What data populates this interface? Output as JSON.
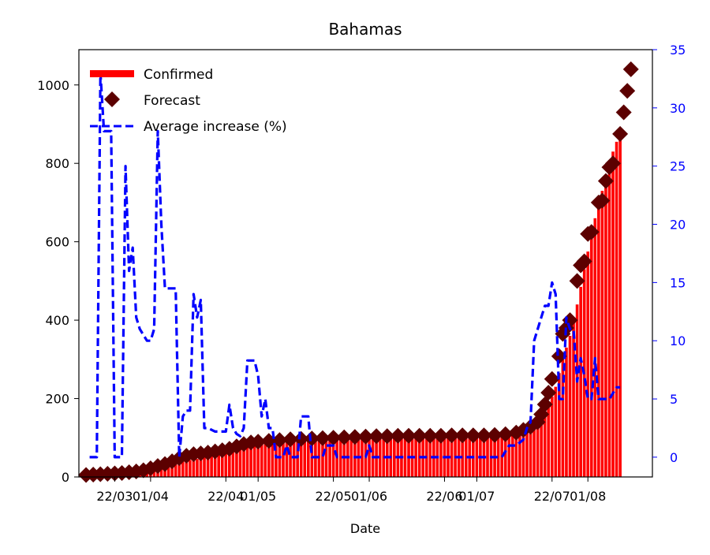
{
  "chart_data": {
    "type": "bar",
    "title": "Bahamas",
    "xlabel": "Date",
    "ylabel": "",
    "ylim": [
      0,
      1090
    ],
    "y2lim": [
      -1.7,
      35
    ],
    "xlim": [
      "2020-03-12",
      "2020-08-19"
    ],
    "grid": false,
    "legend_position": "top-left",
    "x_ticks": [
      {
        "date": "2020-03-22",
        "label": "22/03"
      },
      {
        "date": "2020-04-01",
        "label": "01/04"
      },
      {
        "date": "2020-04-22",
        "label": "22/04"
      },
      {
        "date": "2020-05-01",
        "label": "01/05"
      },
      {
        "date": "2020-05-22",
        "label": "22/05"
      },
      {
        "date": "2020-06-01",
        "label": "01/06"
      },
      {
        "date": "2020-06-22",
        "label": "22/06"
      },
      {
        "date": "2020-07-01",
        "label": "01/07"
      },
      {
        "date": "2020-07-22",
        "label": "22/07"
      },
      {
        "date": "2020-08-01",
        "label": "01/08"
      }
    ],
    "y_ticks": [
      0,
      200,
      400,
      600,
      800,
      1000
    ],
    "y2_ticks": [
      0,
      5,
      10,
      15,
      20,
      25,
      30,
      35
    ],
    "colors": {
      "confirmed": "#ff0000",
      "forecast": "#5c0000",
      "average": "#0000ff"
    },
    "series": [
      {
        "name": "Confirmed",
        "kind": "bar",
        "points": [
          [
            "2020-03-15",
            1
          ],
          [
            "2020-03-18",
            3
          ],
          [
            "2020-03-21",
            4
          ],
          [
            "2020-03-24",
            5
          ],
          [
            "2020-03-27",
            9
          ],
          [
            "2020-03-30",
            14
          ],
          [
            "2020-04-02",
            20
          ],
          [
            "2020-04-05",
            28
          ],
          [
            "2020-04-08",
            36
          ],
          [
            "2020-04-11",
            42
          ],
          [
            "2020-04-14",
            46
          ],
          [
            "2020-04-17",
            52
          ],
          [
            "2020-04-20",
            58
          ],
          [
            "2020-04-23",
            64
          ],
          [
            "2020-04-26",
            72
          ],
          [
            "2020-04-29",
            78
          ],
          [
            "2020-05-02",
            83
          ],
          [
            "2020-05-05",
            86
          ],
          [
            "2020-05-08",
            89
          ],
          [
            "2020-05-11",
            92
          ],
          [
            "2020-05-14",
            94
          ],
          [
            "2020-05-17",
            96
          ],
          [
            "2020-05-20",
            97
          ],
          [
            "2020-05-23",
            98
          ],
          [
            "2020-05-26",
            100
          ],
          [
            "2020-05-29",
            101
          ],
          [
            "2020-06-01",
            102
          ],
          [
            "2020-06-05",
            102
          ],
          [
            "2020-06-10",
            103
          ],
          [
            "2020-06-15",
            103
          ],
          [
            "2020-06-20",
            103
          ],
          [
            "2020-06-25",
            104
          ],
          [
            "2020-06-30",
            104
          ],
          [
            "2020-07-05",
            104
          ],
          [
            "2020-07-08",
            105
          ],
          [
            "2020-07-11",
            110
          ],
          [
            "2020-07-14",
            115
          ],
          [
            "2020-07-17",
            125
          ],
          [
            "2020-07-19",
            140
          ],
          [
            "2020-07-21",
            180
          ],
          [
            "2020-07-23",
            230
          ],
          [
            "2020-07-25",
            300
          ],
          [
            "2020-07-27",
            360
          ],
          [
            "2020-07-29",
            440
          ],
          [
            "2020-07-31",
            530
          ],
          [
            "2020-08-02",
            620
          ],
          [
            "2020-08-04",
            700
          ],
          [
            "2020-08-06",
            760
          ],
          [
            "2020-08-08",
            830
          ],
          [
            "2020-08-10",
            880
          ]
        ]
      },
      {
        "name": "Forecast",
        "kind": "scatter",
        "points": [
          [
            "2020-03-14",
            5
          ],
          [
            "2020-03-16",
            6
          ],
          [
            "2020-03-18",
            7
          ],
          [
            "2020-03-20",
            8
          ],
          [
            "2020-03-22",
            9
          ],
          [
            "2020-03-24",
            10
          ],
          [
            "2020-03-26",
            12
          ],
          [
            "2020-03-28",
            14
          ],
          [
            "2020-03-30",
            17
          ],
          [
            "2020-04-01",
            22
          ],
          [
            "2020-04-03",
            28
          ],
          [
            "2020-04-05",
            33
          ],
          [
            "2020-04-07",
            40
          ],
          [
            "2020-04-09",
            48
          ],
          [
            "2020-04-11",
            54
          ],
          [
            "2020-04-13",
            58
          ],
          [
            "2020-04-15",
            60
          ],
          [
            "2020-04-17",
            62
          ],
          [
            "2020-04-19",
            65
          ],
          [
            "2020-04-21",
            68
          ],
          [
            "2020-04-23",
            72
          ],
          [
            "2020-04-25",
            78
          ],
          [
            "2020-04-27",
            84
          ],
          [
            "2020-04-29",
            88
          ],
          [
            "2020-05-01",
            90
          ],
          [
            "2020-05-04",
            92
          ],
          [
            "2020-05-07",
            94
          ],
          [
            "2020-05-10",
            96
          ],
          [
            "2020-05-13",
            97
          ],
          [
            "2020-05-16",
            98
          ],
          [
            "2020-05-19",
            99
          ],
          [
            "2020-05-22",
            100
          ],
          [
            "2020-05-25",
            101
          ],
          [
            "2020-05-28",
            102
          ],
          [
            "2020-05-31",
            103
          ],
          [
            "2020-06-03",
            104
          ],
          [
            "2020-06-06",
            104
          ],
          [
            "2020-06-09",
            105
          ],
          [
            "2020-06-12",
            105
          ],
          [
            "2020-06-15",
            105
          ],
          [
            "2020-06-18",
            105
          ],
          [
            "2020-06-21",
            105
          ],
          [
            "2020-06-24",
            106
          ],
          [
            "2020-06-27",
            106
          ],
          [
            "2020-06-30",
            106
          ],
          [
            "2020-07-03",
            106
          ],
          [
            "2020-07-06",
            107
          ],
          [
            "2020-07-09",
            109
          ],
          [
            "2020-07-12",
            113
          ],
          [
            "2020-07-14",
            120
          ],
          [
            "2020-07-16",
            128
          ],
          [
            "2020-07-18",
            140
          ],
          [
            "2020-07-19",
            160
          ],
          [
            "2020-07-20",
            185
          ],
          [
            "2020-07-21",
            215
          ],
          [
            "2020-07-22",
            250
          ],
          [
            "2020-07-24",
            308
          ],
          [
            "2020-07-25",
            365
          ],
          [
            "2020-07-26",
            380
          ],
          [
            "2020-07-27",
            400
          ],
          [
            "2020-07-29",
            500
          ],
          [
            "2020-07-30",
            540
          ],
          [
            "2020-07-31",
            550
          ],
          [
            "2020-08-01",
            620
          ],
          [
            "2020-08-02",
            625
          ],
          [
            "2020-08-04",
            700
          ],
          [
            "2020-08-05",
            705
          ],
          [
            "2020-08-06",
            755
          ],
          [
            "2020-08-07",
            790
          ],
          [
            "2020-08-08",
            800
          ],
          [
            "2020-08-10",
            875
          ],
          [
            "2020-08-11",
            930
          ],
          [
            "2020-08-12",
            985
          ],
          [
            "2020-08-13",
            1040
          ]
        ]
      },
      {
        "name": "Average increase (%)",
        "kind": "line",
        "axis": "right",
        "points": [
          [
            "2020-03-15",
            0
          ],
          [
            "2020-03-17",
            0
          ],
          [
            "2020-03-18",
            33
          ],
          [
            "2020-03-19",
            28
          ],
          [
            "2020-03-20",
            28
          ],
          [
            "2020-03-21",
            28
          ],
          [
            "2020-03-22",
            0
          ],
          [
            "2020-03-23",
            0
          ],
          [
            "2020-03-24",
            0
          ],
          [
            "2020-03-25",
            25
          ],
          [
            "2020-03-26",
            16
          ],
          [
            "2020-03-27",
            18
          ],
          [
            "2020-03-28",
            12
          ],
          [
            "2020-03-29",
            11
          ],
          [
            "2020-03-30",
            10.5
          ],
          [
            "2020-03-31",
            10
          ],
          [
            "2020-04-01",
            10
          ],
          [
            "2020-04-02",
            11
          ],
          [
            "2020-04-03",
            28
          ],
          [
            "2020-04-04",
            20
          ],
          [
            "2020-04-05",
            14.5
          ],
          [
            "2020-04-06",
            14.5
          ],
          [
            "2020-04-07",
            14.5
          ],
          [
            "2020-04-08",
            14.5
          ],
          [
            "2020-04-09",
            0
          ],
          [
            "2020-04-10",
            3.5
          ],
          [
            "2020-04-11",
            4
          ],
          [
            "2020-04-12",
            4
          ],
          [
            "2020-04-13",
            14
          ],
          [
            "2020-04-14",
            12
          ],
          [
            "2020-04-15",
            13.5
          ],
          [
            "2020-04-16",
            2.5
          ],
          [
            "2020-04-17",
            2.5
          ],
          [
            "2020-04-19",
            2.2
          ],
          [
            "2020-04-21",
            2.2
          ],
          [
            "2020-04-22",
            2.2
          ],
          [
            "2020-04-23",
            4.5
          ],
          [
            "2020-04-24",
            2.5
          ],
          [
            "2020-04-25",
            2
          ],
          [
            "2020-04-26",
            1.8
          ],
          [
            "2020-04-27",
            2.5
          ],
          [
            "2020-04-28",
            8.3
          ],
          [
            "2020-04-29",
            8.3
          ],
          [
            "2020-04-30",
            8.3
          ],
          [
            "2020-05-01",
            7
          ],
          [
            "2020-05-02",
            3.5
          ],
          [
            "2020-05-03",
            5
          ],
          [
            "2020-05-04",
            2.5
          ],
          [
            "2020-05-05",
            2.5
          ],
          [
            "2020-05-06",
            0
          ],
          [
            "2020-05-07",
            0
          ],
          [
            "2020-05-08",
            0
          ],
          [
            "2020-05-09",
            1
          ],
          [
            "2020-05-10",
            0
          ],
          [
            "2020-05-11",
            0
          ],
          [
            "2020-05-12",
            0
          ],
          [
            "2020-05-13",
            3.5
          ],
          [
            "2020-05-14",
            3.5
          ],
          [
            "2020-05-15",
            3.5
          ],
          [
            "2020-05-16",
            0
          ],
          [
            "2020-05-18",
            0
          ],
          [
            "2020-05-19",
            0
          ],
          [
            "2020-05-20",
            1
          ],
          [
            "2020-05-21",
            1
          ],
          [
            "2020-05-22",
            1
          ],
          [
            "2020-05-23",
            0
          ],
          [
            "2020-05-26",
            0
          ],
          [
            "2020-05-29",
            0
          ],
          [
            "2020-05-31",
            0
          ],
          [
            "2020-06-01",
            1
          ],
          [
            "2020-06-02",
            0
          ],
          [
            "2020-06-10",
            0
          ],
          [
            "2020-06-20",
            0
          ],
          [
            "2020-06-30",
            0
          ],
          [
            "2020-07-05",
            0
          ],
          [
            "2020-07-08",
            0
          ],
          [
            "2020-07-10",
            1
          ],
          [
            "2020-07-12",
            1
          ],
          [
            "2020-07-14",
            1.5
          ],
          [
            "2020-07-15",
            2.5
          ],
          [
            "2020-07-16",
            3
          ],
          [
            "2020-07-17",
            10
          ],
          [
            "2020-07-18",
            11
          ],
          [
            "2020-07-19",
            12
          ],
          [
            "2020-07-20",
            13
          ],
          [
            "2020-07-21",
            13
          ],
          [
            "2020-07-22",
            15
          ],
          [
            "2020-07-23",
            14
          ],
          [
            "2020-07-24",
            5
          ],
          [
            "2020-07-25",
            5
          ],
          [
            "2020-07-26",
            12
          ],
          [
            "2020-07-27",
            11
          ],
          [
            "2020-07-28",
            11
          ],
          [
            "2020-07-29",
            6.5
          ],
          [
            "2020-07-30",
            8.5
          ],
          [
            "2020-07-31",
            7
          ],
          [
            "2020-08-01",
            5
          ],
          [
            "2020-08-02",
            5
          ],
          [
            "2020-08-03",
            8.5
          ],
          [
            "2020-08-04",
            5
          ],
          [
            "2020-08-05",
            5
          ],
          [
            "2020-08-06",
            5
          ],
          [
            "2020-08-07",
            5
          ],
          [
            "2020-08-08",
            5.5
          ],
          [
            "2020-08-09",
            6
          ],
          [
            "2020-08-10",
            6
          ]
        ]
      }
    ]
  }
}
